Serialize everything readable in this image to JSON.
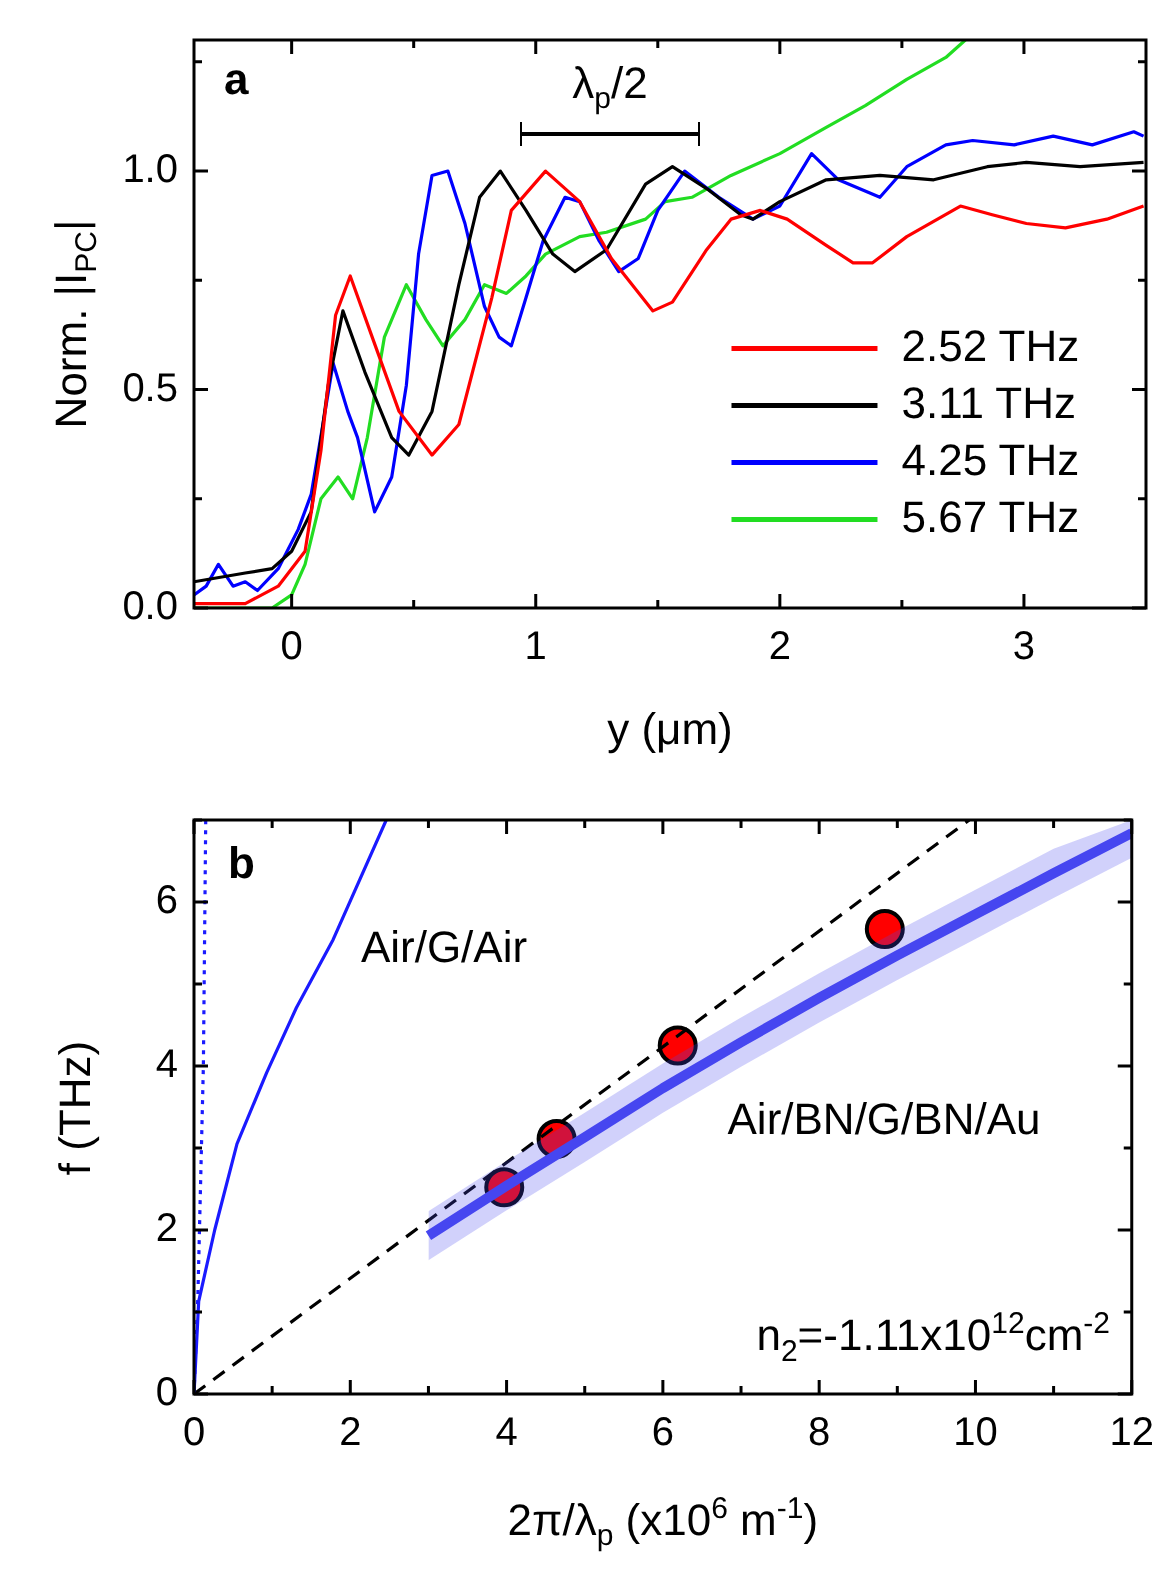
{
  "chart_data": [
    {
      "type": "line",
      "xlabel": "y (μm)",
      "ylabel": "Norm. |I$_{PC}$|",
      "legend": "bottom right",
      "xlim": [
        -0.4,
        3.5
      ],
      "xticks": [
        0,
        {
          "value": 0.5,
          "label": null
        },
        1,
        {
          "value": 1.5,
          "label": null
        },
        2,
        {
          "value": 2.5,
          "label": null
        },
        3
      ],
      "ylim": [
        0,
        1.3
      ],
      "yticks": [
        {
          "value": 0,
          "label": "0.0"
        },
        {
          "value": 0.25,
          "label": null
        },
        {
          "value": 0.5,
          "label": "0.5"
        },
        {
          "value": 0.75,
          "label": null
        },
        {
          "value": 1,
          "label": "1.0"
        },
        {
          "value": 1.25,
          "label": null
        }
      ],
      "annotations": [
        "a",
        "λ$_{p}$/2"
      ],
      "series": [
        {
          "name": "2.52 THz",
          "color": "#ff0000",
          "x": [
            -0.4,
            -0.19,
            -0.055,
            0.055,
            0.12,
            0.18,
            0.24,
            0.33,
            0.44,
            0.575,
            0.685,
            0.82,
            0.9,
            1.04,
            1.18,
            1.31,
            1.48,
            1.56,
            1.7,
            1.8,
            1.92,
            2.03,
            2.19,
            2.3,
            2.38,
            2.52,
            2.74,
            2.87,
            3.01,
            3.17,
            3.34,
            3.49
          ],
          "values": [
            0.01,
            0.01,
            0.05,
            0.13,
            0.36,
            0.67,
            0.76,
            0.62,
            0.45,
            0.35,
            0.42,
            0.71,
            0.91,
            1.0,
            0.93,
            0.8,
            0.68,
            0.7,
            0.82,
            0.89,
            0.91,
            0.89,
            0.83,
            0.79,
            0.79,
            0.85,
            0.92,
            0.9,
            0.88,
            0.87,
            0.89,
            0.92
          ]
        },
        {
          "name": "3.11 THz",
          "color": "#000000",
          "x": [
            -0.4,
            -0.19,
            -0.08,
            0,
            0.08,
            0.15,
            0.21,
            0.3,
            0.41,
            0.48,
            0.575,
            0.685,
            0.77,
            0.855,
            0.96,
            1.07,
            1.16,
            1.29,
            1.45,
            1.56,
            1.7,
            1.84,
            1.89,
            2.0,
            2.19,
            2.41,
            2.63,
            2.85,
            3.01,
            3.23,
            3.49
          ],
          "values": [
            0.06,
            0.08,
            0.09,
            0.13,
            0.22,
            0.51,
            0.68,
            0.54,
            0.39,
            0.35,
            0.45,
            0.74,
            0.94,
            1.0,
            0.91,
            0.81,
            0.77,
            0.82,
            0.97,
            1.01,
            0.96,
            0.9,
            0.89,
            0.93,
            0.98,
            0.99,
            0.98,
            1.01,
            1.02,
            1.01,
            1.02
          ]
        },
        {
          "name": "4.25 THz",
          "color": "#0000ff",
          "x": [
            -0.4,
            -0.35,
            -0.3,
            -0.24,
            -0.19,
            -0.14,
            -0.055,
            0.027,
            0.08,
            0.137,
            0.17,
            0.23,
            0.27,
            0.34,
            0.41,
            0.47,
            0.52,
            0.575,
            0.64,
            0.71,
            0.79,
            0.85,
            0.9,
            0.96,
            1.03,
            1.12,
            1.18,
            1.26,
            1.34,
            1.42,
            1.5,
            1.61,
            1.75,
            1.89,
            2.0,
            2.13,
            2.24,
            2.41,
            2.52,
            2.68,
            2.79,
            2.96,
            3.12,
            3.28,
            3.45,
            3.49
          ],
          "values": [
            0.03,
            0.05,
            0.1,
            0.05,
            0.06,
            0.04,
            0.09,
            0.18,
            0.26,
            0.45,
            0.56,
            0.45,
            0.39,
            0.22,
            0.3,
            0.51,
            0.81,
            0.99,
            1.0,
            0.88,
            0.69,
            0.62,
            0.6,
            0.71,
            0.84,
            0.94,
            0.93,
            0.84,
            0.77,
            0.8,
            0.91,
            1.0,
            0.94,
            0.89,
            0.92,
            1.04,
            0.98,
            0.94,
            1.01,
            1.06,
            1.07,
            1.06,
            1.08,
            1.06,
            1.09,
            1.08
          ]
        },
        {
          "name": "5.67 THz",
          "color": "#22dd22",
          "x": [
            -0.4,
            -0.08,
            0,
            0.055,
            0.12,
            0.19,
            0.25,
            0.31,
            0.38,
            0.47,
            0.55,
            0.62,
            0.71,
            0.79,
            0.88,
            0.96,
            1.04,
            1.18,
            1.29,
            1.45,
            1.53,
            1.64,
            1.8,
            2.0,
            2.19,
            2.35,
            2.52,
            2.68,
            2.76
          ],
          "values": [
            0.0,
            0.0,
            0.03,
            0.1,
            0.25,
            0.3,
            0.25,
            0.39,
            0.62,
            0.74,
            0.66,
            0.6,
            0.66,
            0.74,
            0.72,
            0.76,
            0.81,
            0.85,
            0.86,
            0.89,
            0.93,
            0.94,
            0.99,
            1.04,
            1.1,
            1.15,
            1.21,
            1.26,
            1.3
          ]
        }
      ]
    },
    {
      "type": "line",
      "xlabel": "2π/λ$_{p}$ (x10$^{6}$ m$^{-1}$)",
      "ylabel": "f (THz)",
      "xlim": [
        0,
        12
      ],
      "xticks": [
        0,
        {
          "value": 1,
          "label": null
        },
        2,
        {
          "value": 3,
          "label": null
        },
        4,
        {
          "value": 5,
          "label": null
        },
        6,
        {
          "value": 7,
          "label": null
        },
        8,
        {
          "value": 9,
          "label": null
        },
        10,
        {
          "value": 11,
          "label": null
        },
        12
      ],
      "ylim": [
        0,
        7
      ],
      "yticks": [
        0,
        {
          "value": 1,
          "label": null
        },
        2,
        {
          "value": 3,
          "label": null
        },
        4,
        {
          "value": 5,
          "label": null
        },
        6,
        {
          "value": 7,
          "label": null
        }
      ],
      "annotations": [
        "b",
        "n$_{2}$=-1.11x10$^{12}$cm$^{-2}$",
        "Air/G/Air",
        "Air/BN/G/BN/Au"
      ],
      "series": [
        {
          "color": "#4646f0",
          "x": [
            3,
            4,
            5,
            6,
            7,
            8,
            9,
            10,
            11,
            12
          ],
          "values": [
            1.93,
            2.54,
            3.13,
            3.73,
            4.29,
            4.83,
            5.35,
            5.85,
            6.35,
            6.84
          ],
          "lower": [
            1.63,
            2.24,
            2.83,
            3.43,
            3.99,
            4.53,
            5.05,
            5.55,
            6.05,
            6.54
          ],
          "upper": [
            2.23,
            2.84,
            3.43,
            4.03,
            4.59,
            5.13,
            5.65,
            6.15,
            6.65,
            7.0
          ]
        },
        {
          "color": "#1a1aff",
          "x": [
            0,
            0.06,
            0.265,
            0.55,
            0.93,
            1.31,
            1.78,
            2.46
          ],
          "values": [
            0,
            1.13,
            2.0,
            3.05,
            3.92,
            4.71,
            5.54,
            7.0
          ]
        },
        {
          "color": "#1a1aff",
          "line_style": "dotted",
          "x": [
            0,
            0.05,
            0.12,
            0.15
          ],
          "values": [
            0,
            1.2,
            4.0,
            7.0
          ]
        },
        {
          "color": "#000000",
          "line_style": "dashed",
          "x": [
            0,
            9.92
          ],
          "values": [
            0,
            7
          ]
        },
        {
          "type": "scatter",
          "color": "#ff0000",
          "marker": "circle",
          "x": [
            3.97,
            4.64,
            6.19,
            8.84
          ],
          "values": [
            2.52,
            3.11,
            4.25,
            5.67
          ]
        }
      ]
    }
  ]
}
